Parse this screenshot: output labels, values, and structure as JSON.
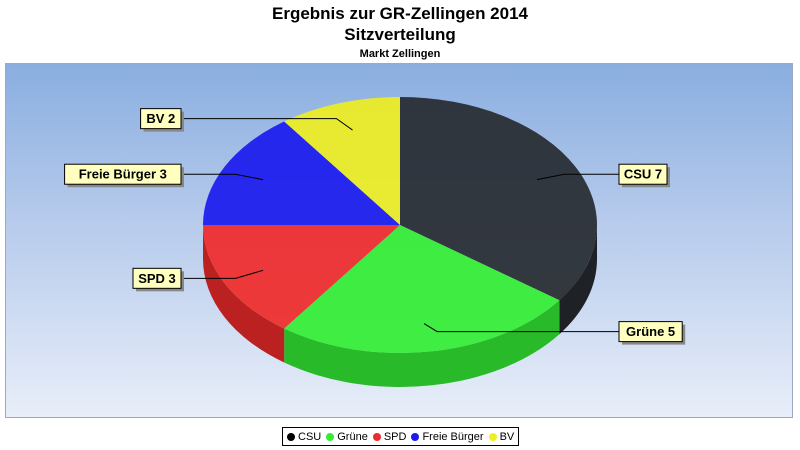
{
  "chart_data": {
    "type": "pie",
    "title": "Ergebnis zur GR-Zellingen 2014",
    "subtitle": "Sitzverteilung",
    "subsubtitle": "Markt Zellingen",
    "categories": [
      "CSU",
      "Grüne",
      "SPD",
      "Freie Bürger",
      "BV"
    ],
    "values": [
      7,
      5,
      3,
      3,
      2
    ],
    "data_labels": [
      "CSU 7",
      "Grüne 5",
      "SPD 3",
      "Freie Bürger 3",
      "BV 2"
    ],
    "colors": [
      "#262a30",
      "#33ee33",
      "#f02a2a",
      "#1a1aee",
      "#eeee22"
    ],
    "legend_position": "bottom",
    "style": "3d"
  }
}
